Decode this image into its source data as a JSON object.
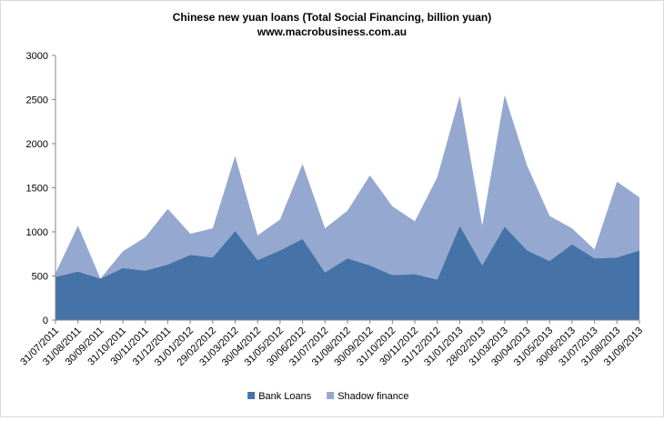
{
  "chart_data": {
    "type": "area",
    "stacked": true,
    "title": "Chinese new yuan loans (Total Social  Financing,  billion yuan)",
    "subtitle": "www.macrobusiness.com.au",
    "xlabel": "",
    "ylabel": "",
    "ylim": [
      0,
      3000
    ],
    "yticks": [
      0,
      500,
      1000,
      1500,
      2000,
      2500,
      3000
    ],
    "grid": false,
    "legend": "bottom",
    "categories": [
      "31/07/2011",
      "31/08/2011",
      "30/09/2011",
      "31/10/2011",
      "30/11/2011",
      "31/12/2011",
      "31/01/2012",
      "29/02/2012",
      "31/03/2012",
      "30/04/2012",
      "31/05/2012",
      "30/06/2012",
      "31/07/2012",
      "31/08/2012",
      "30/09/2012",
      "31/10/2012",
      "30/11/2012",
      "31/12/2012",
      "31/01/2013",
      "28/02/2013",
      "31/03/2013",
      "30/04/2013",
      "31/05/2013",
      "30/06/2013",
      "31/07/2013",
      "31/08/2013",
      "31/09/2013"
    ],
    "series": [
      {
        "name": "Bank Loans",
        "color": "#4572a7",
        "values": [
          490,
          550,
          470,
          590,
          560,
          630,
          740,
          710,
          1010,
          680,
          790,
          920,
          540,
          700,
          620,
          510,
          520,
          460,
          1070,
          620,
          1060,
          790,
          670,
          860,
          700,
          710,
          790
        ]
      },
      {
        "name": "Shadow finance",
        "color": "#95a8cf",
        "values": [
          40,
          520,
          0,
          190,
          380,
          630,
          240,
          330,
          850,
          280,
          350,
          850,
          500,
          540,
          1020,
          780,
          600,
          1160,
          1470,
          450,
          1490,
          960,
          510,
          180,
          100,
          860,
          600
        ]
      }
    ]
  }
}
